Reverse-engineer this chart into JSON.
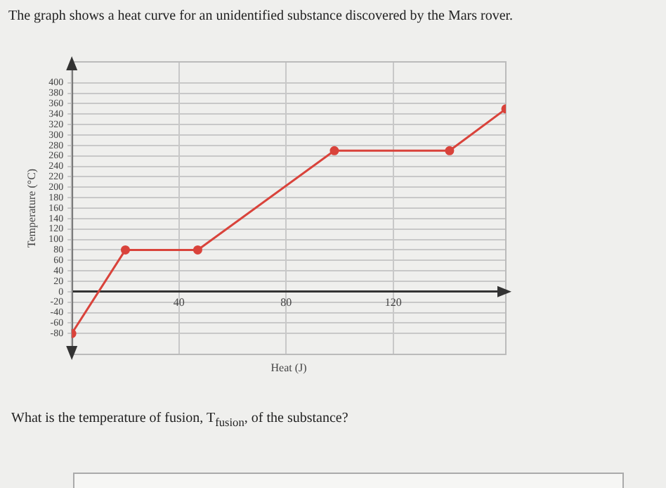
{
  "chart_data": {
    "type": "line",
    "annotations": [
      "The graph shows a heat curve for an unidentified substance discovered by the Mars rover.",
      "What is the temperature of fusion, T$_{fusion}$, of the substance?"
    ],
    "xlabel": "Heat (J)",
    "ylabel": "Temperature (°C)",
    "x": [
      0,
      20,
      47,
      98,
      141,
      162
    ],
    "values": [
      -80,
      80,
      80,
      270,
      270,
      350
    ],
    "color": "#d9433b",
    "marker": "circle",
    "line_style": "solid",
    "grid": true,
    "xlim": [
      0,
      162
    ],
    "xticks": [
      40,
      80,
      120
    ],
    "ylim": [
      -120,
      440
    ],
    "yticks": [
      -80,
      -60,
      -40,
      -20,
      0,
      20,
      40,
      60,
      80,
      100,
      120,
      140,
      160,
      180,
      200,
      220,
      240,
      260,
      280,
      300,
      320,
      340,
      360,
      380,
      400
    ]
  }
}
